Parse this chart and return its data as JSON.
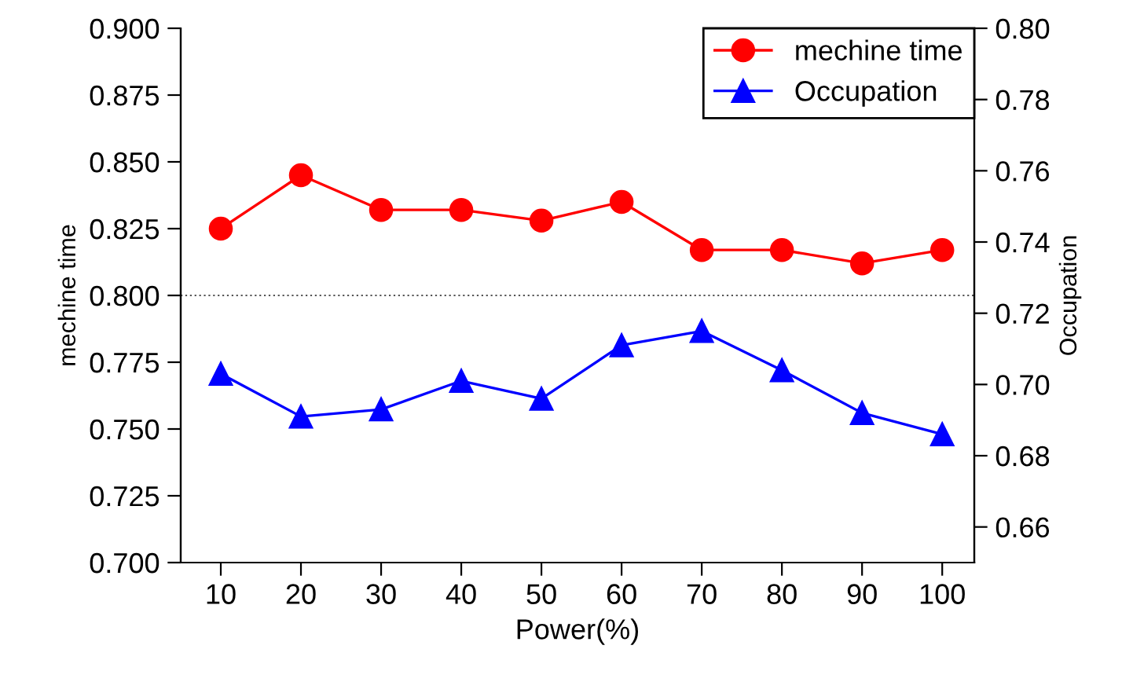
{
  "chart_data": {
    "type": "line",
    "xlabel": "Power(%)",
    "ylabel": "mechine time",
    "y2label": "Occupation",
    "x": [
      10,
      20,
      30,
      40,
      50,
      60,
      70,
      80,
      90,
      100
    ],
    "series": [
      {
        "name": "mechine time",
        "color": "#ff0000",
        "marker": "circle",
        "values": [
          0.825,
          0.845,
          0.832,
          0.832,
          0.828,
          0.835,
          0.817,
          0.817,
          0.812,
          0.817
        ]
      },
      {
        "name": "Occupation",
        "color": "#0000ff",
        "marker": "triangle",
        "axis": "y2",
        "values": [
          0.703,
          0.691,
          0.693,
          0.701,
          0.696,
          0.711,
          0.715,
          0.704,
          0.692,
          0.686
        ]
      }
    ],
    "xlim": [
      5,
      104
    ],
    "xticks": [
      10,
      20,
      30,
      40,
      50,
      60,
      70,
      80,
      90,
      100
    ],
    "ylim": [
      0.7,
      0.9
    ],
    "yticks": [
      {
        "value": 0.7,
        "label": "0.700"
      },
      {
        "value": 0.725,
        "label": "0.725"
      },
      {
        "value": 0.75,
        "label": "0.750"
      },
      {
        "value": 0.775,
        "label": "0.775"
      },
      {
        "value": 0.8,
        "label": "0.800"
      },
      {
        "value": 0.825,
        "label": "0.825"
      },
      {
        "value": 0.85,
        "label": "0.850"
      },
      {
        "value": 0.875,
        "label": "0.875"
      },
      {
        "value": 0.9,
        "label": "0.900"
      }
    ],
    "y2lim": [
      0.65,
      0.8
    ],
    "y2ticks": [
      {
        "value": 0.66,
        "label": "0.66"
      },
      {
        "value": 0.68,
        "label": "0.68"
      },
      {
        "value": 0.7,
        "label": "0.70"
      },
      {
        "value": 0.72,
        "label": "0.72"
      },
      {
        "value": 0.74,
        "label": "0.74"
      },
      {
        "value": 0.76,
        "label": "0.76"
      },
      {
        "value": 0.78,
        "label": "0.78"
      },
      {
        "value": 0.8,
        "label": "0.80"
      }
    ],
    "ref_lines": [
      {
        "axis": "y",
        "value": 0.8,
        "color": "#555555",
        "line_style": "dotted"
      }
    ],
    "grid": false,
    "legend": "top right",
    "line_style": "solid"
  }
}
